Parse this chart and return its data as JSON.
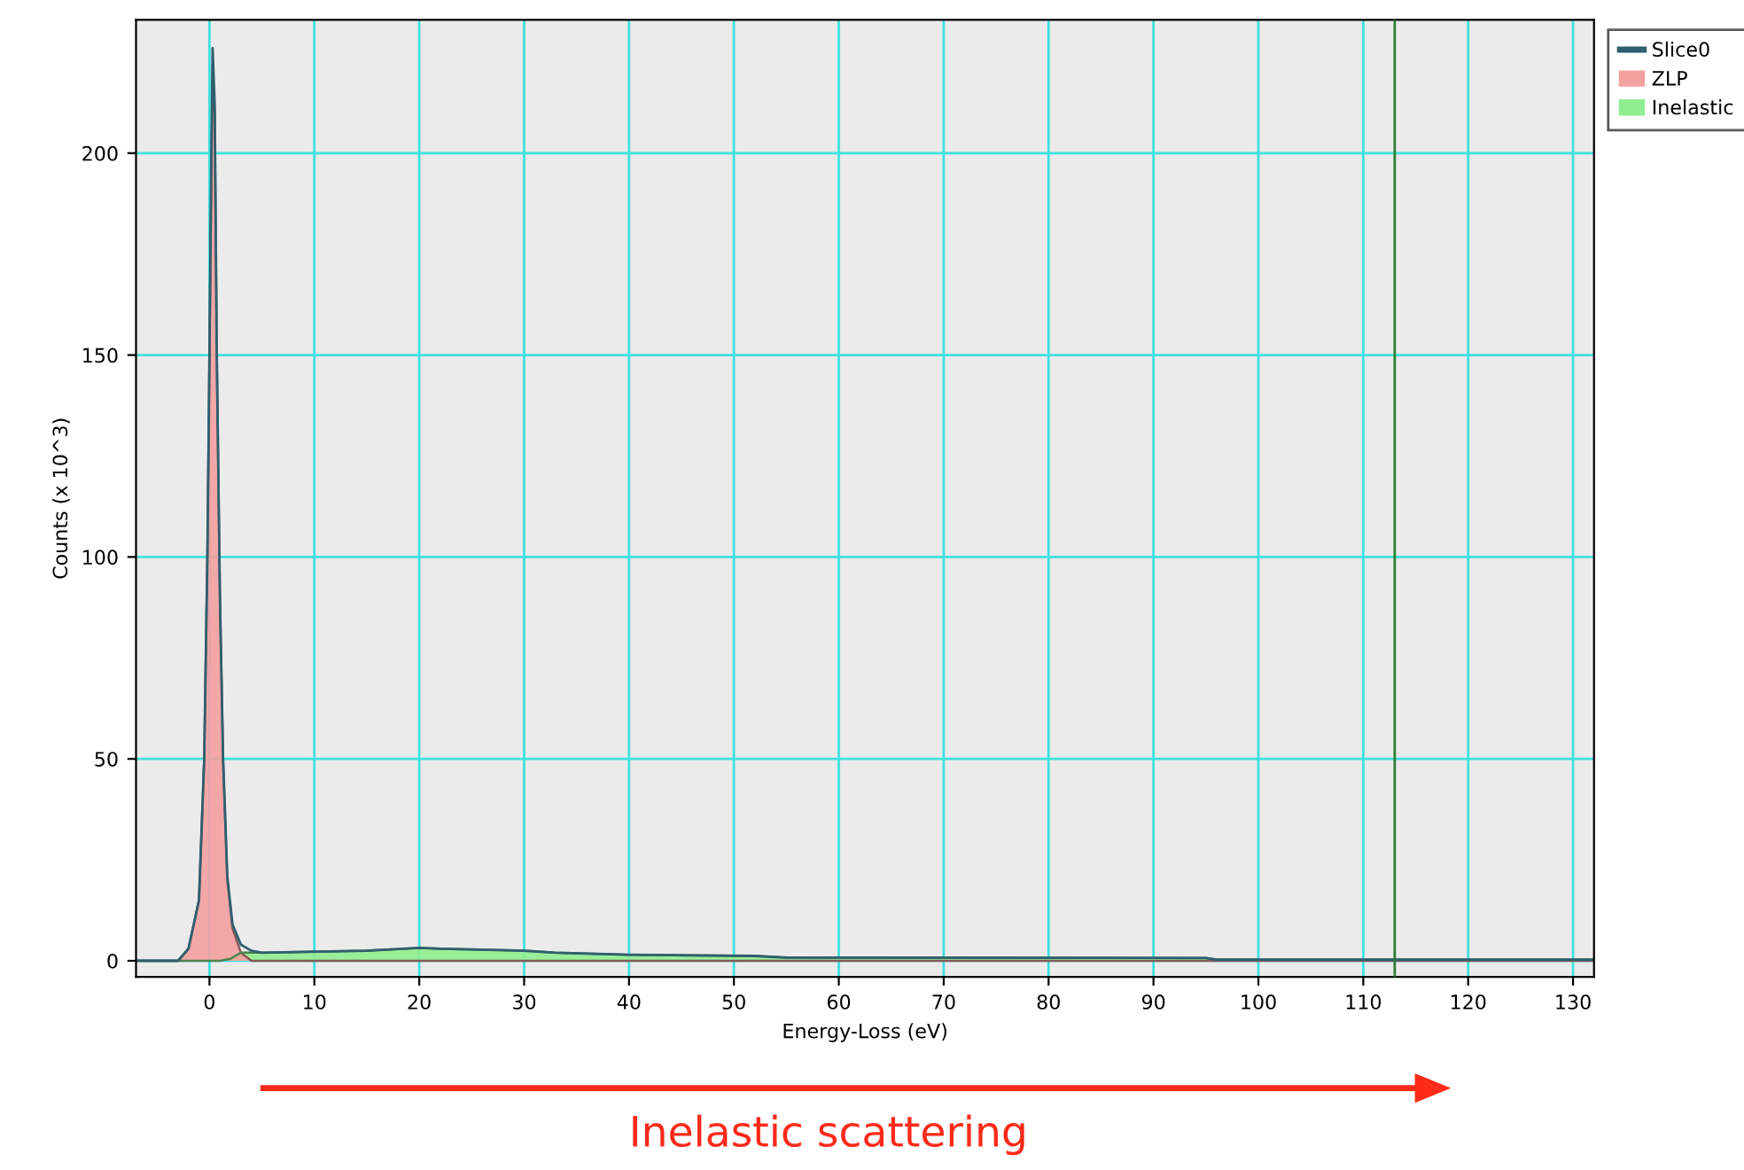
{
  "chart_data": {
    "type": "area",
    "xlabel": "Energy-Loss (eV)",
    "ylabel": "Counts (x 10^3)",
    "xlim": [
      -7,
      132
    ],
    "ylim": [
      -4,
      233
    ],
    "xticks": [
      0,
      10,
      20,
      30,
      40,
      50,
      60,
      70,
      80,
      90,
      100,
      110,
      120,
      130
    ],
    "yticks": [
      0,
      50,
      100,
      150,
      200
    ],
    "grid": true,
    "legend": "top right",
    "ref_lines": [
      {
        "axis": "x",
        "value": 113,
        "color": "#2e7d32"
      }
    ],
    "annotations": [
      "Inelastic scattering"
    ],
    "series": [
      {
        "name": "Slice0",
        "type": "line",
        "color": "#2f5f6f",
        "x": [
          -7,
          -3,
          -2,
          -1,
          -0.5,
          -0.2,
          0,
          0.2,
          0.3,
          0.5,
          0.7,
          1,
          1.3,
          1.7,
          2.2,
          3,
          4,
          5,
          15,
          20,
          22,
          30,
          33,
          40,
          52,
          55,
          95,
          96,
          132
        ],
        "values": [
          0,
          0,
          3,
          15,
          50,
          100,
          150,
          205,
          226,
          212,
          150,
          90,
          50,
          21,
          9,
          4,
          2.5,
          2,
          2.5,
          3.2,
          3,
          2.5,
          2,
          1.5,
          1.2,
          0.8,
          0.7,
          0.3,
          0.3
        ]
      },
      {
        "name": "ZLP",
        "color": "#f4a0a0",
        "x": [
          -7,
          -3,
          -2,
          -1,
          -0.5,
          -0.2,
          0,
          0.2,
          0.3,
          0.5,
          0.7,
          1,
          1.3,
          1.7,
          2.2,
          3,
          4,
          132
        ],
        "values": [
          0,
          0,
          3,
          15,
          50,
          100,
          150,
          200,
          218,
          210,
          150,
          90,
          50,
          20,
          8,
          2,
          0,
          0
        ]
      },
      {
        "name": "Inelastic",
        "color": "#90ee90",
        "x": [
          -7,
          1,
          2,
          3,
          5,
          15,
          20,
          22,
          30,
          33,
          40,
          52,
          55,
          95,
          96,
          132
        ],
        "values": [
          0,
          0,
          0.5,
          2,
          2,
          2.5,
          3.2,
          3,
          2.5,
          2,
          1.5,
          1.2,
          0.8,
          0.7,
          0.3,
          0.3
        ]
      }
    ]
  }
}
